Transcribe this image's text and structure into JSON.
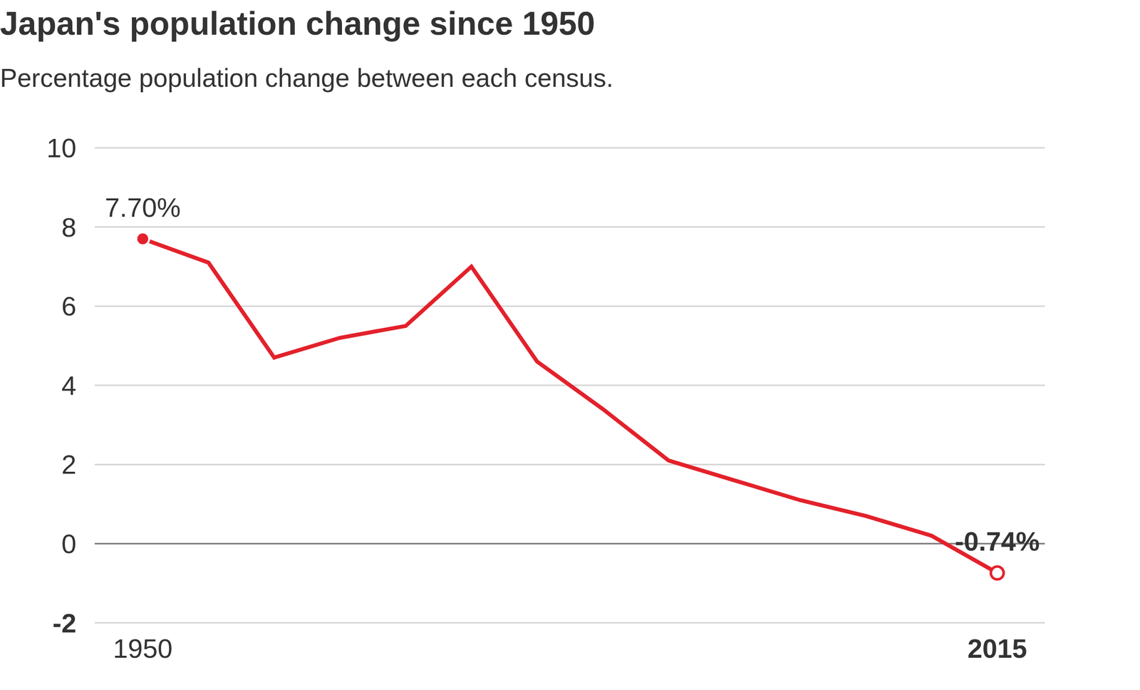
{
  "chart_data": {
    "type": "line",
    "title": "Japan's population change since 1950",
    "subtitle": "Percentage population change between each census.",
    "x": [
      1950,
      1955,
      1960,
      1965,
      1970,
      1975,
      1980,
      1985,
      1990,
      1995,
      2000,
      2005,
      2010,
      2015
    ],
    "values": [
      7.7,
      7.1,
      4.7,
      5.2,
      5.5,
      7.0,
      4.6,
      3.4,
      2.1,
      1.6,
      1.1,
      0.7,
      0.2,
      -0.74
    ],
    "value_labels": [
      "7.70%",
      null,
      null,
      null,
      null,
      null,
      null,
      null,
      null,
      null,
      null,
      null,
      null,
      "-0.74%"
    ],
    "color": "#e3212b",
    "xlim": [
      1950,
      2015
    ],
    "xticks": [
      1950,
      2015
    ],
    "ylim": [
      -2,
      10
    ],
    "yticks": [
      -2,
      0,
      2,
      4,
      6,
      8,
      10
    ],
    "grid": true
  }
}
